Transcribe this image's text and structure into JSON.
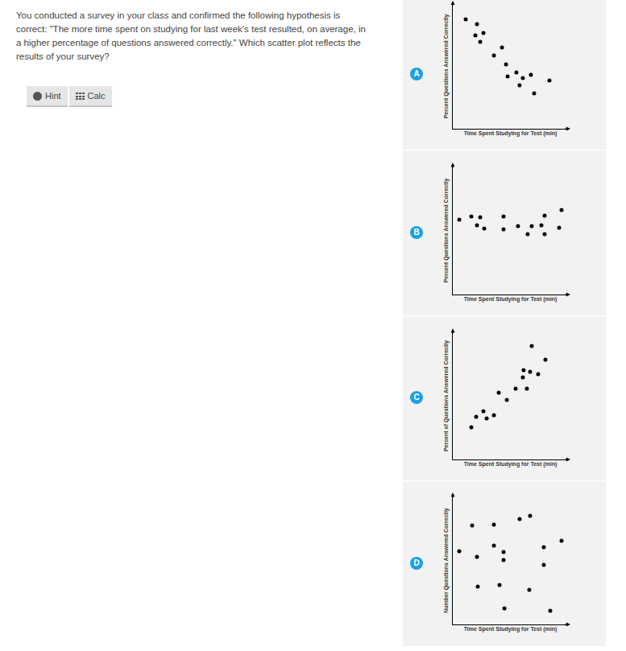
{
  "question": [
    "You conducted a survey in your class and confirmed the following hypothesis is",
    "correct: \"The more time spent on studying for last week's test resulted, on average, in",
    "a higher percentage of questions answered correctly.\"  Which scatter plot reflects the",
    "results of your survey?"
  ],
  "buttons": [
    "Hint",
    "Calc"
  ],
  "options": [
    "A",
    "B",
    "C",
    "D"
  ],
  "chart_data": [
    {
      "type": "scatter",
      "x_label": "Time Spent Studying for Test (min)",
      "y_label": "Percent Questions Answered Correctly",
      "x": [
        11.2,
        21,
        26.6,
        19.6,
        23.8,
        42.7,
        35.7,
        46.2,
        55.2,
        47.6,
        67.8,
        60.8,
        58,
        83.9,
        70.6
      ],
      "values": [
        87.7,
        83.9,
        76.8,
        74.8,
        69.7,
        65.2,
        58.7,
        51.6,
        45.2,
        41.9,
        43.2,
        40.6,
        34.8,
        38.7,
        28.4
      ],
      "xlim": [
        0,
        100
      ],
      "ylim": [
        0,
        100
      ],
      "tick_labels": false,
      "grid": false,
      "color": "#000000",
      "marker": "circle"
    },
    {
      "type": "scatter",
      "x_label": "Time Spent Studying for Test (min)",
      "y_label": "Percent Questions Answered Correctly",
      "x": [
        5.6,
        16.1,
        21,
        23.8,
        27.3,
        44.1,
        44.1,
        56.6,
        65,
        68.5,
        76.9,
        79.7,
        79.7,
        92.3,
        94.4
      ],
      "values": [
        58.5,
        61,
        54.1,
        60.4,
        51.6,
        61,
        50.9,
        53.5,
        47.2,
        53.5,
        54.1,
        61.6,
        47.2,
        52.2,
        66
      ],
      "xlim": [
        0,
        100
      ],
      "ylim": [
        0,
        100
      ],
      "tick_labels": false,
      "grid": false,
      "color": "#000000",
      "marker": "circle"
    },
    {
      "type": "scatter",
      "x_label": "Time Spent Studying for Test (min)",
      "y_label": "Percent of Questions Answered Correctly",
      "x": [
        16.1,
        20.3,
        26.6,
        29.4,
        35.7,
        39.9,
        46.9,
        54.5,
        60.8,
        64.3,
        61.5,
        67.1,
        74.1,
        68.5,
        80.4
      ],
      "values": [
        25.3,
        33.5,
        38,
        32.3,
        34.8,
        52.5,
        46.8,
        55.7,
        64.6,
        55.7,
        70.3,
        69,
        67.1,
        89.2,
        78.5
      ],
      "xlim": [
        0,
        100
      ],
      "ylim": [
        0,
        100
      ],
      "tick_labels": false,
      "grid": false,
      "color": "#000000",
      "marker": "circle"
    },
    {
      "type": "scatter",
      "x_label": "Time Spent Studying for Test (min)",
      "y_label": "Number Questions Answered Correctly",
      "x": [
        5.6,
        16.8,
        21,
        21.7,
        35.7,
        35.7,
        40.6,
        44.8,
        44.1,
        44.1,
        58,
        67.1,
        66.4,
        79,
        79,
        94.4,
        84.6
      ],
      "values": [
        57.2,
        77.4,
        52.8,
        29.6,
        78,
        61.6,
        30.8,
        12.6,
        56.6,
        50.3,
        82.4,
        84.9,
        27,
        60.4,
        46.5,
        65.4,
        10.7
      ],
      "xlim": [
        0,
        100
      ],
      "ylim": [
        0,
        100
      ],
      "tick_labels": false,
      "grid": false,
      "color": "#000000",
      "marker": "circle"
    }
  ]
}
